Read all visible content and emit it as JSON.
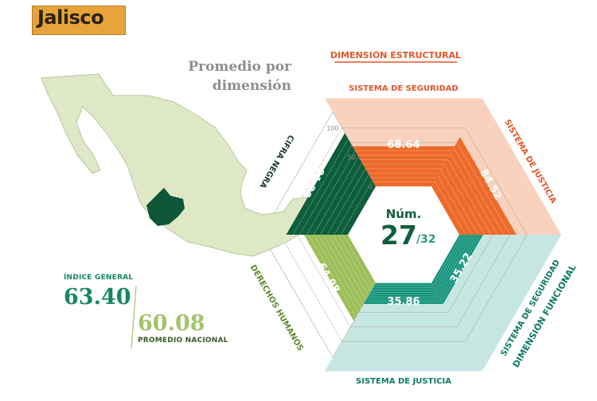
{
  "badge": {
    "title": "Jalisco"
  },
  "subtitle": {
    "line1": "Promedio por",
    "line2": "dimensión"
  },
  "indices": {
    "general_label": "ÍNDICE GENERAL",
    "general_value": "63.40",
    "national_value": "60.08",
    "national_label": "PROMEDIO NACIONAL"
  },
  "center": {
    "label": "Núm.",
    "rank": "27",
    "total": "/32"
  },
  "axis": {
    "ticks": [
      "100",
      "50",
      "0"
    ]
  },
  "dimensions": {
    "structural": "DIMENSIÓN ESTRUCTURAL",
    "functional": "DIMENSIÓN FUNCIONAL"
  },
  "chart_data": {
    "type": "radial-bar",
    "ylim": [
      0,
      100
    ],
    "categories": [
      "SISTEMA DE SEGURIDAD",
      "SISTEMA DE JUSTICIA",
      "SISTEMA DE SEGURIDAD",
      "SISTEMA DE JUSTICIA",
      "DERECHOS HUMANOS",
      "CIFRA NEGRA"
    ],
    "values": [
      68.64,
      84.52,
      35.22,
      35.86,
      64.98,
      91.2
    ],
    "value_labels": [
      "68.64",
      "84.52",
      "35.22",
      "35.86",
      "64.98",
      "91.20"
    ],
    "groups": [
      {
        "name": "DIMENSIÓN ESTRUCTURAL",
        "category_indices": [
          0,
          1
        ]
      },
      {
        "name": "DIMENSIÓN FUNCIONAL",
        "category_indices": [
          2,
          3
        ]
      }
    ]
  },
  "colors": {
    "badge": "#e8a33a",
    "orange_bar": "#ee6a2a",
    "orange_band": "#f8d2bd",
    "orange_title": "#e3562a",
    "teal_bar": "#15937c",
    "teal_band": "#c6e6e2",
    "teal_title": "#0e7a63",
    "dark_green_bar": "#0e5e3c",
    "light_green_bar": "#9cbf5a",
    "map_fill": "#dfe8c6",
    "map_highlight": "#0d5638"
  }
}
